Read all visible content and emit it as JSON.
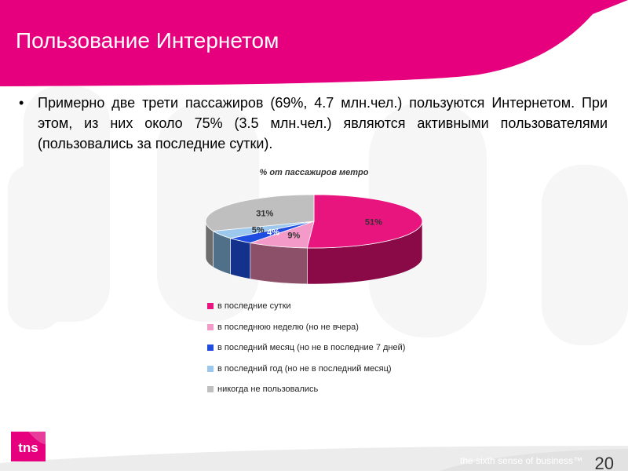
{
  "slide": {
    "title": "Пользование Интернетом",
    "bullet": "Примерно две трети пассажиров (69%, 4.7 млн.чел.) пользуются Интернетом. При этом, из них около 75% (3.5 млн.чел.) являются активными пользователями (пользовались за последние сутки).",
    "page_number": "20",
    "tagline": "the sixth sense of business™",
    "logo_text": "tns",
    "colors": {
      "accent": "#e6007e",
      "footer": "#e9e9e9"
    }
  },
  "chart_data": {
    "type": "pie",
    "title": "% от пассажиров метро",
    "labels": [
      "в последние сутки",
      "в последнюю неделю (но не вчера)",
      "в последний месяц (но не в последние 7 дней)",
      "в последний год (но не в последний месяц)",
      "никогда не пользовались"
    ],
    "values": [
      51,
      9,
      4,
      5,
      31
    ],
    "value_labels": [
      "51%",
      "9%",
      "4%",
      "5%",
      "31%"
    ],
    "colors": [
      "#e8157f",
      "#f49ac8",
      "#1f4de0",
      "#9cc8ee",
      "#bfbfbf"
    ],
    "side_colors": [
      "#8a0a47",
      "#8c5068",
      "#14318c",
      "#50708a",
      "#6e6e6e"
    ],
    "legend_position": "bottom"
  }
}
